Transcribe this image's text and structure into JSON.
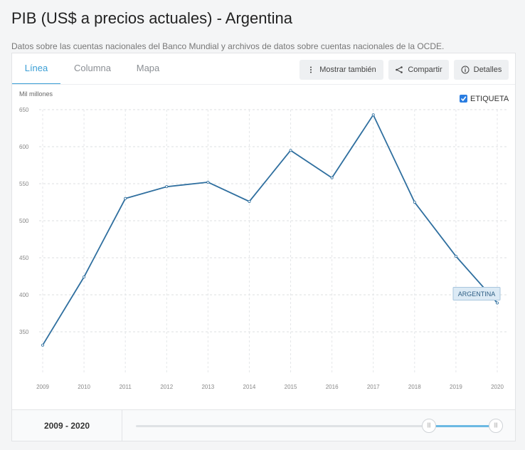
{
  "page": {
    "title": "PIB (US$ a precios actuales) - Argentina",
    "subtitle": "Datos sobre las cuentas nacionales del Banco Mundial y archivos de datos sobre cuentas nacionales de la OCDE."
  },
  "tabs": [
    {
      "label": "Línea",
      "active": true
    },
    {
      "label": "Columna",
      "active": false
    },
    {
      "label": "Mapa",
      "active": false
    }
  ],
  "toolbar": {
    "show_also_label": "Mostrar también",
    "share_label": "Compartir",
    "details_label": "Detalles"
  },
  "legend_toggle": {
    "label": "ETIQUETA",
    "checked": true
  },
  "range": {
    "start": "2009",
    "end": "2020",
    "separator": "-"
  },
  "colors": {
    "accent": "#3a9ed5",
    "line": "#2f6f9f",
    "checkbox": "#2a7de1"
  },
  "chart_data": {
    "type": "line",
    "ylabel": "Mil millones",
    "xlabel": "",
    "ylim": [
      300,
      650
    ],
    "yticks": [
      350,
      400,
      450,
      500,
      550,
      600,
      650
    ],
    "x": [
      "2009",
      "2010",
      "2011",
      "2012",
      "2013",
      "2014",
      "2015",
      "2016",
      "2017",
      "2018",
      "2019",
      "2020"
    ],
    "grid": "horizontal dashed",
    "series": [
      {
        "name": "ARGENTINA",
        "values": [
          332,
          424,
          530,
          546,
          552,
          526,
          595,
          558,
          643,
          525,
          452,
          389
        ]
      }
    ]
  }
}
